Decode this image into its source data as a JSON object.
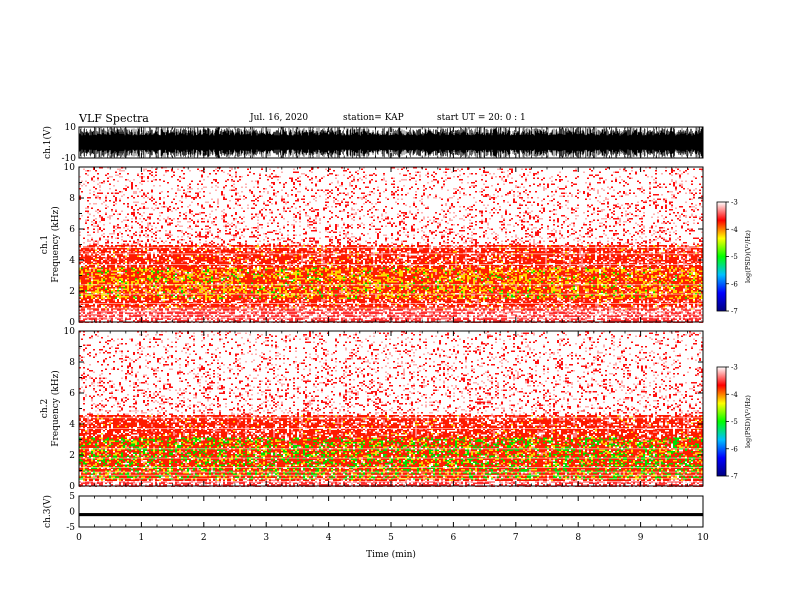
{
  "header": {
    "title": "VLF Spectra",
    "date": "Jul. 16, 2020",
    "station": "station= KAP",
    "start": "start UT = 20: 0 : 1"
  },
  "chart_data": [
    {
      "type": "line",
      "name": "ch1-waveform",
      "ylabel": "ch.1(V)",
      "ylim": [
        -10,
        10
      ],
      "yticks": [
        "10",
        "-10"
      ],
      "note": "saturated waveform filling most of the range"
    },
    {
      "type": "heatmap",
      "name": "ch1-spectrogram",
      "ylabel": "ch.1\nFrequency (kHz)",
      "ylim": [
        0,
        10
      ],
      "yticks": [
        "0",
        "2",
        "4",
        "6",
        "8",
        "10"
      ],
      "xlim": [
        0,
        10
      ],
      "colorbar": {
        "label": "log(PSD)(V²/Hz)",
        "range": [
          -7,
          -3
        ],
        "ticks": [
          "-3",
          "-4",
          "-5",
          "-6",
          "-7"
        ],
        "colors": [
          "#000080",
          "#0000ff",
          "#00c0ff",
          "#00ff00",
          "#ffff00",
          "#ff0000",
          "#ffffff"
        ]
      },
      "bands_khz": {
        "strong": [
          1.5,
          3.6
        ],
        "moderate": [
          0.9,
          5.0
        ],
        "weak": [
          5.0,
          10
        ]
      }
    },
    {
      "type": "heatmap",
      "name": "ch2-spectrogram",
      "ylabel": "ch.2\nFrequency (kHz)",
      "ylim": [
        0,
        10
      ],
      "yticks": [
        "0",
        "2",
        "4",
        "6",
        "8",
        "10"
      ],
      "xlim": [
        0,
        10
      ],
      "colorbar": {
        "label": "log(PSD)(V²/Hz)",
        "range": [
          -7,
          -3
        ],
        "ticks": [
          "-3",
          "-4",
          "-5",
          "-6",
          "-7"
        ],
        "colors": [
          "#000080",
          "#0000ff",
          "#00c0ff",
          "#00ff00",
          "#ffff00",
          "#ff0000",
          "#ffffff"
        ]
      },
      "bands_khz": {
        "strong": [
          0.5,
          3.2
        ],
        "moderate": [
          0.4,
          4.6
        ],
        "weak": [
          4.6,
          10
        ]
      }
    },
    {
      "type": "line",
      "name": "ch3-waveform",
      "ylabel": "ch.3(V)",
      "ylim": [
        -5,
        5
      ],
      "yticks": [
        "5",
        "0",
        "-5"
      ],
      "level": -1,
      "amplitude": 0.5,
      "xlabel": "Time (min)",
      "xlim": [
        0,
        10
      ],
      "xticks": [
        "0",
        "1",
        "2",
        "3",
        "4",
        "5",
        "6",
        "7",
        "8",
        "9",
        "10"
      ]
    }
  ]
}
